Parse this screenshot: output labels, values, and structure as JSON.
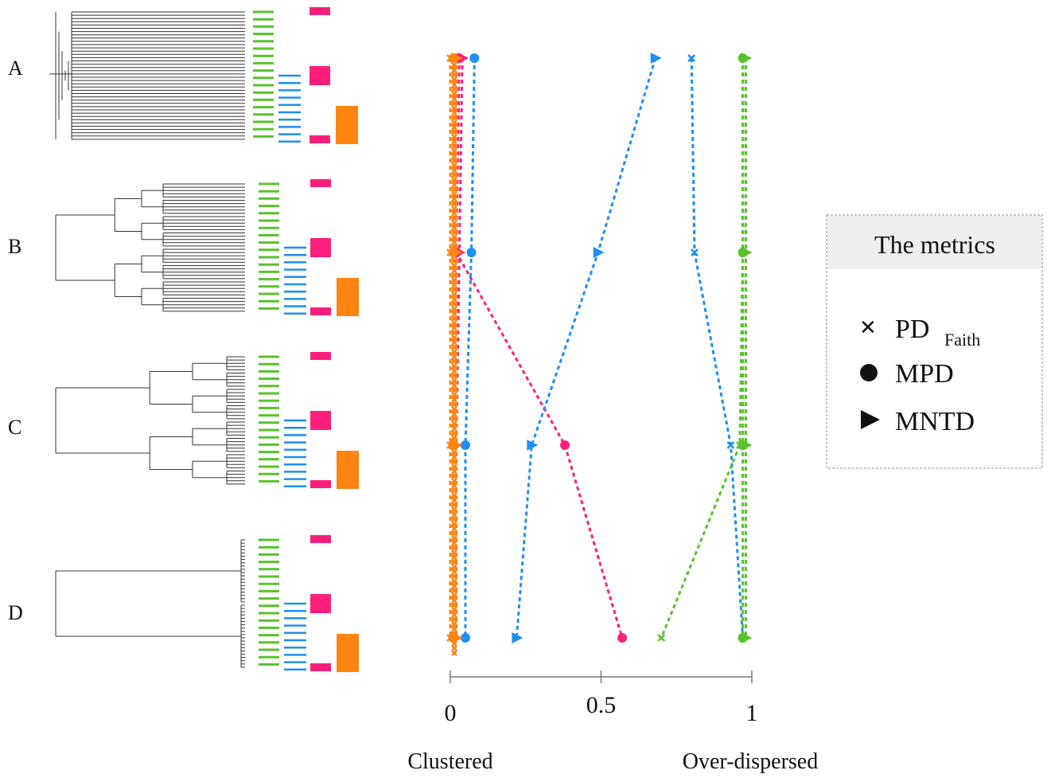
{
  "rows": [
    {
      "label": "A"
    },
    {
      "label": "B"
    },
    {
      "label": "C"
    },
    {
      "label": "D"
    }
  ],
  "colors": {
    "pink": "#ff1f7a",
    "green": "#58c22c",
    "blue": "#1f8ff0",
    "orange": "#ff8412",
    "tree": "#333333"
  },
  "axis": {
    "range": [
      0,
      1
    ],
    "ticks": [
      {
        "value": 0,
        "label": "0"
      },
      {
        "value": 0.5,
        "label": "0.5"
      },
      {
        "value": 1,
        "label": "1"
      }
    ],
    "left_label": "Clustered",
    "right_label": "Over-dispersed"
  },
  "legend": {
    "title": "The metrics",
    "items": [
      {
        "marker": "x",
        "label": "PD",
        "sub": "Faith"
      },
      {
        "marker": "circle",
        "label": "MPD",
        "sub": ""
      },
      {
        "marker": "triangle",
        "label": "MNTD",
        "sub": ""
      }
    ]
  },
  "series": [
    {
      "color": "pink",
      "metric": "triangle",
      "values": [
        0.04,
        0.03,
        0.02,
        0.02
      ]
    },
    {
      "color": "pink",
      "metric": "circle",
      "values": [
        0.03,
        0.02,
        0.38,
        0.57
      ]
    },
    {
      "color": "pink",
      "metric": "x",
      "values": [
        0.02,
        0.01,
        0.01,
        0.01
      ]
    },
    {
      "color": "blue",
      "metric": "x",
      "values": [
        0.8,
        0.81,
        0.93,
        0.97
      ]
    },
    {
      "color": "blue",
      "metric": "circle",
      "values": [
        0.08,
        0.07,
        0.05,
        0.05
      ]
    },
    {
      "color": "blue",
      "metric": "triangle",
      "values": [
        0.68,
        0.49,
        0.27,
        0.22
      ]
    },
    {
      "color": "green",
      "metric": "x",
      "values": [
        0.97,
        0.97,
        0.96,
        0.7
      ]
    },
    {
      "color": "green",
      "metric": "triangle",
      "values": [
        0.98,
        0.98,
        0.98,
        0.98
      ]
    },
    {
      "color": "green",
      "metric": "circle",
      "values": [
        0.97,
        0.97,
        0.97,
        0.97
      ]
    },
    {
      "color": "orange",
      "metric": "triangle",
      "values": [
        0.02,
        0.02,
        0.02,
        0.02
      ]
    },
    {
      "color": "orange",
      "metric": "circle",
      "values": [
        0.01,
        0.01,
        0.01,
        0.01
      ]
    },
    {
      "color": "orange",
      "metric": "x",
      "values": [
        0.0,
        0.0,
        0.0,
        0.0
      ]
    }
  ]
}
